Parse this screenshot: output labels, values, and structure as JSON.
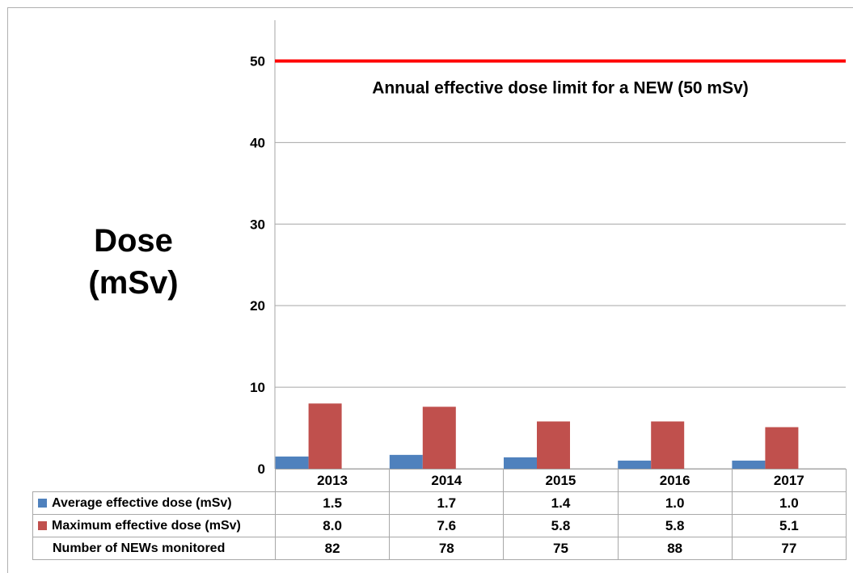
{
  "chart_data": {
    "type": "bar",
    "title": "",
    "ylabel_lines": [
      "Dose",
      "(mSv)"
    ],
    "ylim": [
      0,
      55
    ],
    "yticks": [
      0,
      10,
      20,
      30,
      40,
      50
    ],
    "grid": true,
    "categories": [
      "2013",
      "2014",
      "2015",
      "2016",
      "2017"
    ],
    "series": [
      {
        "name": "Average effective dose (mSv)",
        "color": "#4f81bd",
        "values": [
          1.5,
          1.7,
          1.4,
          1.0,
          1.0
        ],
        "labels": [
          "1.5",
          "1.7",
          "1.4",
          "1.0",
          "1.0"
        ]
      },
      {
        "name": "Maximum effective dose (mSv)",
        "color": "#c0504d",
        "values": [
          8.0,
          7.6,
          5.8,
          5.8,
          5.1
        ],
        "labels": [
          "8.0",
          "7.6",
          "5.8",
          "5.8",
          "5.1"
        ]
      }
    ],
    "extra_row": {
      "name": "Number of NEWs monitored",
      "labels": [
        "82",
        "78",
        "75",
        "88",
        "77"
      ]
    },
    "reference_line": {
      "value": 50,
      "color": "#ff0000",
      "label": "Annual effective dose limit for a NEW (50 mSv)"
    }
  }
}
